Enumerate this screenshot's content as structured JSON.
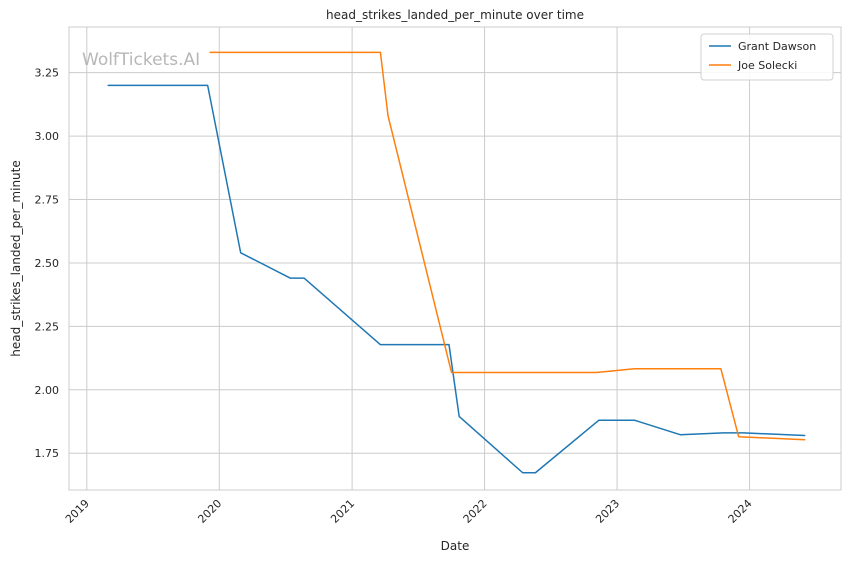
{
  "chart_data": {
    "type": "line",
    "title": "head_strikes_landed_per_minute over time",
    "xlabel": "Date",
    "ylabel": "head_strikes_landed_per_minute",
    "x_axis_type": "date",
    "xlim": [
      "2018-11-13",
      "2024-09-09"
    ],
    "ylim": [
      1.605,
      3.43
    ],
    "x_ticks": [
      {
        "date": "2019-01-01",
        "label": "2019"
      },
      {
        "date": "2020-01-01",
        "label": "2020"
      },
      {
        "date": "2021-01-01",
        "label": "2021"
      },
      {
        "date": "2022-01-01",
        "label": "2022"
      },
      {
        "date": "2023-01-01",
        "label": "2023"
      },
      {
        "date": "2024-01-01",
        "label": "2024"
      }
    ],
    "y_ticks": [
      {
        "value": 1.75,
        "label": "1.75"
      },
      {
        "value": 2.0,
        "label": "2.00"
      },
      {
        "value": 2.25,
        "label": "2.25"
      },
      {
        "value": 2.5,
        "label": "2.50"
      },
      {
        "value": 2.75,
        "label": "2.75"
      },
      {
        "value": 3.0,
        "label": "3.00"
      },
      {
        "value": 3.25,
        "label": "3.25"
      }
    ],
    "grid": true,
    "legend_position": "top-right",
    "watermark": "WolfTickets.AI",
    "series": [
      {
        "name": "Grant Dawson",
        "color": "#1f77b4",
        "points": [
          {
            "x": "2019-03-01",
            "y": 3.2
          },
          {
            "x": "2019-11-30",
            "y": 3.2
          },
          {
            "x": "2020-02-29",
            "y": 2.54
          },
          {
            "x": "2020-07-15",
            "y": 2.44
          },
          {
            "x": "2020-08-22",
            "y": 2.44
          },
          {
            "x": "2021-03-20",
            "y": 2.178
          },
          {
            "x": "2021-09-25",
            "y": 2.178
          },
          {
            "x": "2021-10-23",
            "y": 1.895
          },
          {
            "x": "2022-04-16",
            "y": 1.673
          },
          {
            "x": "2022-05-21",
            "y": 1.673
          },
          {
            "x": "2022-11-12",
            "y": 1.88
          },
          {
            "x": "2023-02-18",
            "y": 1.88
          },
          {
            "x": "2023-06-24",
            "y": 1.823
          },
          {
            "x": "2023-10-21",
            "y": 1.83
          },
          {
            "x": "2023-12-16",
            "y": 1.83
          },
          {
            "x": "2024-06-01",
            "y": 1.82
          }
        ]
      },
      {
        "name": "Joe Solecki",
        "color": "#ff7f0e",
        "points": [
          {
            "x": "2019-12-07",
            "y": 3.33
          },
          {
            "x": "2021-03-20",
            "y": 3.33
          },
          {
            "x": "2021-04-10",
            "y": 3.08
          },
          {
            "x": "2021-10-02",
            "y": 2.068
          },
          {
            "x": "2022-11-05",
            "y": 2.068
          },
          {
            "x": "2023-02-18",
            "y": 2.083
          },
          {
            "x": "2023-10-14",
            "y": 2.083
          },
          {
            "x": "2023-12-02",
            "y": 1.815
          },
          {
            "x": "2024-06-01",
            "y": 1.803
          }
        ]
      }
    ]
  }
}
